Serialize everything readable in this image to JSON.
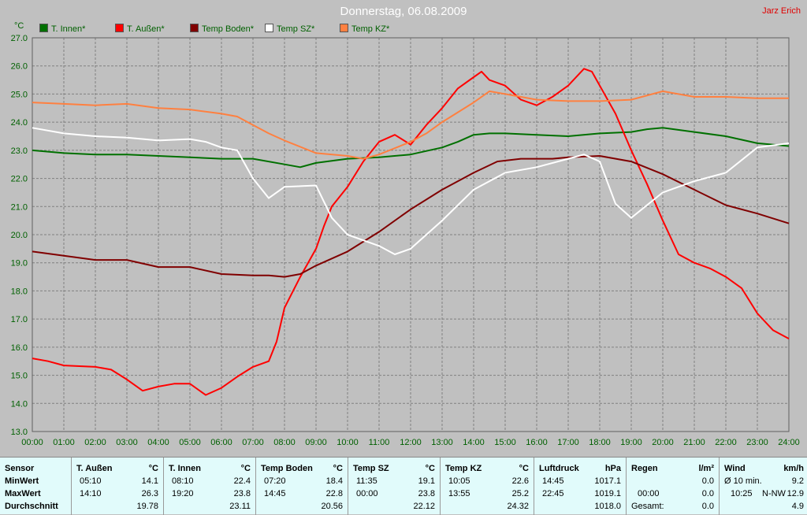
{
  "header": {
    "title": "Donnerstag, 06.08.2009",
    "author": "Jarz Erich",
    "unit": "°C"
  },
  "colors": {
    "background": "#c0c0c0",
    "grid": "#808080",
    "axis_text": "#006000",
    "stats_bg": "#e1fbfb"
  },
  "chart_data": {
    "type": "line",
    "title": "Donnerstag, 06.08.2009",
    "xlabel": "",
    "ylabel": "°C",
    "xlim": [
      0,
      24
    ],
    "ylim": [
      13,
      27
    ],
    "grid": true,
    "legend_position": "top",
    "x_ticks": [
      "00:00",
      "01:00",
      "02:00",
      "03:00",
      "04:00",
      "05:00",
      "06:00",
      "07:00",
      "08:00",
      "09:00",
      "10:00",
      "11:00",
      "12:00",
      "13:00",
      "14:00",
      "15:00",
      "16:00",
      "17:00",
      "18:00",
      "19:00",
      "20:00",
      "21:00",
      "22:00",
      "23:00",
      "24:00"
    ],
    "y_ticks": [
      "13.0",
      "14.0",
      "15.0",
      "16.0",
      "17.0",
      "18.0",
      "19.0",
      "20.0",
      "21.0",
      "22.0",
      "23.0",
      "24.0",
      "25.0",
      "26.0",
      "27.0"
    ],
    "series": [
      {
        "name": "T. Innen*",
        "color": "#007000",
        "points": [
          [
            0,
            23.0
          ],
          [
            1,
            22.9
          ],
          [
            2,
            22.85
          ],
          [
            3,
            22.85
          ],
          [
            4,
            22.8
          ],
          [
            5,
            22.75
          ],
          [
            6,
            22.7
          ],
          [
            7,
            22.7
          ],
          [
            8,
            22.5
          ],
          [
            8.5,
            22.4
          ],
          [
            9,
            22.55
          ],
          [
            10,
            22.7
          ],
          [
            11,
            22.75
          ],
          [
            12,
            22.85
          ],
          [
            13,
            23.1
          ],
          [
            13.5,
            23.3
          ],
          [
            14,
            23.55
          ],
          [
            14.5,
            23.6
          ],
          [
            15,
            23.6
          ],
          [
            16,
            23.55
          ],
          [
            17,
            23.5
          ],
          [
            18,
            23.6
          ],
          [
            19,
            23.65
          ],
          [
            19.5,
            23.75
          ],
          [
            20,
            23.8
          ],
          [
            21,
            23.65
          ],
          [
            22,
            23.5
          ],
          [
            23,
            23.25
          ],
          [
            24,
            23.15
          ]
        ]
      },
      {
        "name": "T. Außen*",
        "color": "#ff0000",
        "points": [
          [
            0,
            15.6
          ],
          [
            0.5,
            15.5
          ],
          [
            1,
            15.35
          ],
          [
            2,
            15.3
          ],
          [
            2.5,
            15.2
          ],
          [
            3,
            14.85
          ],
          [
            3.5,
            14.45
          ],
          [
            4,
            14.6
          ],
          [
            4.5,
            14.7
          ],
          [
            5,
            14.7
          ],
          [
            5.5,
            14.3
          ],
          [
            6,
            14.55
          ],
          [
            6.5,
            14.95
          ],
          [
            7,
            15.3
          ],
          [
            7.5,
            15.5
          ],
          [
            7.75,
            16.2
          ],
          [
            8,
            17.4
          ],
          [
            8.5,
            18.5
          ],
          [
            9,
            19.5
          ],
          [
            9.25,
            20.3
          ],
          [
            9.5,
            21.0
          ],
          [
            10,
            21.7
          ],
          [
            10.5,
            22.6
          ],
          [
            11,
            23.3
          ],
          [
            11.5,
            23.55
          ],
          [
            12,
            23.2
          ],
          [
            12.5,
            23.9
          ],
          [
            13,
            24.5
          ],
          [
            13.5,
            25.2
          ],
          [
            14,
            25.6
          ],
          [
            14.25,
            25.8
          ],
          [
            14.5,
            25.5
          ],
          [
            15,
            25.3
          ],
          [
            15.5,
            24.8
          ],
          [
            16,
            24.6
          ],
          [
            16.5,
            24.9
          ],
          [
            17,
            25.3
          ],
          [
            17.5,
            25.9
          ],
          [
            17.75,
            25.8
          ],
          [
            18,
            25.3
          ],
          [
            18.5,
            24.3
          ],
          [
            19,
            23.0
          ],
          [
            19.5,
            21.8
          ],
          [
            20,
            20.5
          ],
          [
            20.5,
            19.3
          ],
          [
            21,
            19.0
          ],
          [
            21.5,
            18.8
          ],
          [
            22,
            18.5
          ],
          [
            22.5,
            18.1
          ],
          [
            23,
            17.2
          ],
          [
            23.5,
            16.6
          ],
          [
            24,
            16.3
          ]
        ]
      },
      {
        "name": "Temp Boden*",
        "color": "#800000",
        "points": [
          [
            0,
            19.4
          ],
          [
            1,
            19.25
          ],
          [
            2,
            19.1
          ],
          [
            3,
            19.1
          ],
          [
            4,
            18.85
          ],
          [
            5,
            18.85
          ],
          [
            6,
            18.6
          ],
          [
            7,
            18.55
          ],
          [
            7.5,
            18.55
          ],
          [
            8,
            18.5
          ],
          [
            8.5,
            18.6
          ],
          [
            9,
            18.9
          ],
          [
            10,
            19.4
          ],
          [
            11,
            20.1
          ],
          [
            12,
            20.9
          ],
          [
            13,
            21.6
          ],
          [
            14,
            22.2
          ],
          [
            14.75,
            22.6
          ],
          [
            15.5,
            22.7
          ],
          [
            16.5,
            22.7
          ],
          [
            17,
            22.75
          ],
          [
            18,
            22.8
          ],
          [
            19,
            22.6
          ],
          [
            20,
            22.15
          ],
          [
            21,
            21.6
          ],
          [
            22,
            21.05
          ],
          [
            23,
            20.75
          ],
          [
            24,
            20.4
          ]
        ]
      },
      {
        "name": "Temp SZ*",
        "color": "#ffffff",
        "points": [
          [
            0,
            23.8
          ],
          [
            1,
            23.6
          ],
          [
            2,
            23.5
          ],
          [
            3,
            23.45
          ],
          [
            4,
            23.35
          ],
          [
            5,
            23.4
          ],
          [
            5.5,
            23.3
          ],
          [
            6,
            23.1
          ],
          [
            6.5,
            23.0
          ],
          [
            7,
            22.0
          ],
          [
            7.5,
            21.3
          ],
          [
            8,
            21.7
          ],
          [
            9,
            21.75
          ],
          [
            9.5,
            20.6
          ],
          [
            10,
            20.0
          ],
          [
            11,
            19.6
          ],
          [
            11.5,
            19.3
          ],
          [
            12,
            19.5
          ],
          [
            13,
            20.5
          ],
          [
            14,
            21.6
          ],
          [
            15,
            22.2
          ],
          [
            16,
            22.4
          ],
          [
            17,
            22.7
          ],
          [
            17.5,
            22.85
          ],
          [
            18,
            22.6
          ],
          [
            18.5,
            21.1
          ],
          [
            19,
            20.6
          ],
          [
            20,
            21.5
          ],
          [
            21,
            21.9
          ],
          [
            22,
            22.2
          ],
          [
            23,
            23.1
          ],
          [
            24,
            23.25
          ]
        ]
      },
      {
        "name": "Temp KZ*",
        "color": "#ff8040",
        "points": [
          [
            0,
            24.7
          ],
          [
            1,
            24.65
          ],
          [
            2,
            24.6
          ],
          [
            3,
            24.65
          ],
          [
            4,
            24.5
          ],
          [
            5,
            24.45
          ],
          [
            6,
            24.3
          ],
          [
            6.5,
            24.2
          ],
          [
            7,
            23.9
          ],
          [
            7.5,
            23.6
          ],
          [
            8,
            23.35
          ],
          [
            9,
            22.9
          ],
          [
            10,
            22.8
          ],
          [
            10.5,
            22.7
          ],
          [
            11,
            22.85
          ],
          [
            12,
            23.3
          ],
          [
            12.5,
            23.6
          ],
          [
            13,
            24.0
          ],
          [
            14,
            24.7
          ],
          [
            14.5,
            25.1
          ],
          [
            15,
            25.0
          ],
          [
            16,
            24.8
          ],
          [
            17,
            24.75
          ],
          [
            18,
            24.75
          ],
          [
            19,
            24.8
          ],
          [
            20,
            25.1
          ],
          [
            21,
            24.9
          ],
          [
            22,
            24.9
          ],
          [
            23,
            24.85
          ],
          [
            24,
            24.85
          ]
        ]
      }
    ]
  },
  "stats": {
    "row_labels": [
      "Sensor",
      "MinWert",
      "MaxWert",
      "Durchschnitt"
    ],
    "columns": [
      {
        "name": "T. Außen",
        "unit": "°C",
        "min_time": "05:10",
        "min": "14.1",
        "max_time": "14:10",
        "max": "26.3",
        "avg": "19.78"
      },
      {
        "name": "T. Innen",
        "unit": "°C",
        "min_time": "08:10",
        "min": "22.4",
        "max_time": "19:20",
        "max": "23.8",
        "avg": "23.11"
      },
      {
        "name": "Temp Boden",
        "unit": "°C",
        "min_time": "07:20",
        "min": "18.4",
        "max_time": "14:45",
        "max": "22.8",
        "avg": "20.56"
      },
      {
        "name": "Temp SZ",
        "unit": "°C",
        "min_time": "11:35",
        "min": "19.1",
        "max_time": "00:00",
        "max": "23.8",
        "avg": "22.12"
      },
      {
        "name": "Temp KZ",
        "unit": "°C",
        "min_time": "10:05",
        "min": "22.6",
        "max_time": "13:55",
        "max": "25.2",
        "avg": "24.32"
      },
      {
        "name": "Luftdruck",
        "unit": "hPa",
        "min_time": "14:45",
        "min": "1017.1",
        "max_time": "22:45",
        "max": "1019.1",
        "avg": "1018.0"
      },
      {
        "name": "Regen",
        "unit": "l/m²",
        "min_time": "",
        "min": "0.0",
        "max_time": "00:00",
        "max": "0.0",
        "avg_label": "Gesamt:",
        "avg": "0.0"
      },
      {
        "name": "Wind",
        "unit": "km/h",
        "min_time": "Ø 10 min.",
        "min": "9.2",
        "max_time": "10:25",
        "max_dir": "N-NW",
        "max": "12.9",
        "avg": "4.9"
      }
    ]
  }
}
